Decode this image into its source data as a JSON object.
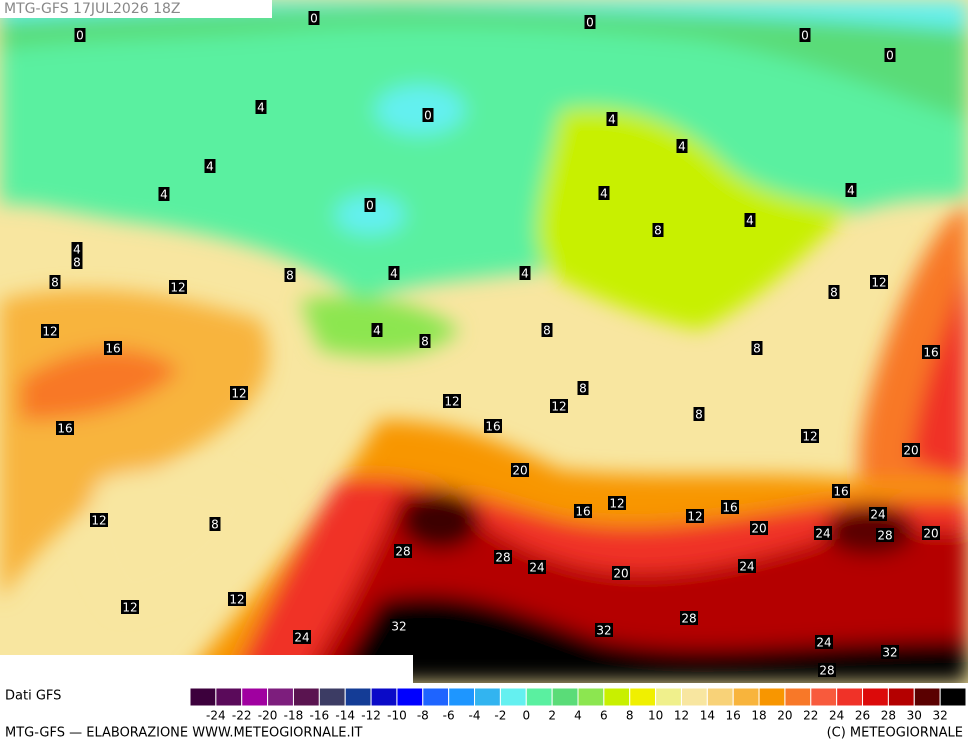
{
  "header": {
    "title": "MTG-GFS 17JUL2026 18Z"
  },
  "contour_labels": [
    0,
    0,
    0,
    0,
    0,
    0,
    0,
    4,
    4,
    4,
    4,
    4,
    4,
    4,
    4,
    4,
    4,
    4,
    4,
    8,
    8,
    8,
    8,
    8,
    8,
    8,
    8,
    8,
    8,
    8,
    12,
    12,
    12,
    12,
    12,
    12,
    12,
    12,
    12,
    12,
    12,
    12,
    16,
    16,
    16,
    16,
    16,
    16,
    16,
    20,
    20,
    20,
    20,
    20,
    24,
    24,
    24,
    24,
    24,
    24,
    28,
    28,
    28,
    28,
    28,
    32,
    32,
    32
  ],
  "legend": {
    "source": "Dati GFS",
    "colors": [
      "#3c003c",
      "#5a0a5a",
      "#a000a0",
      "#7d1e7d",
      "#5a1450",
      "#3c3c64",
      "#143c96",
      "#0a0ac8",
      "#0000ff",
      "#1e64ff",
      "#1e96ff",
      "#32b4f0",
      "#64f0f0",
      "#5af0a0",
      "#5adc78",
      "#8ce650",
      "#c8f000",
      "#f0f000",
      "#f0f08c",
      "#f8e6a0",
      "#f8d278",
      "#f8b43c",
      "#f89600",
      "#f87828",
      "#f85a3c",
      "#f03228",
      "#dc0a0a",
      "#b40000",
      "#5a0000",
      "#000000"
    ],
    "labels": [
      -24,
      -22,
      -20,
      -18,
      -16,
      -14,
      -12,
      -10,
      -8,
      -6,
      -4,
      -2,
      0,
      2,
      4,
      6,
      8,
      10,
      12,
      14,
      16,
      18,
      20,
      22,
      24,
      26,
      28,
      30,
      32
    ]
  },
  "footer": {
    "credit": "MTG-GFS — ELABORAZIONE WWW.METEOGIORNALE.IT",
    "copyright": "(C) METEOGIORNALE"
  }
}
